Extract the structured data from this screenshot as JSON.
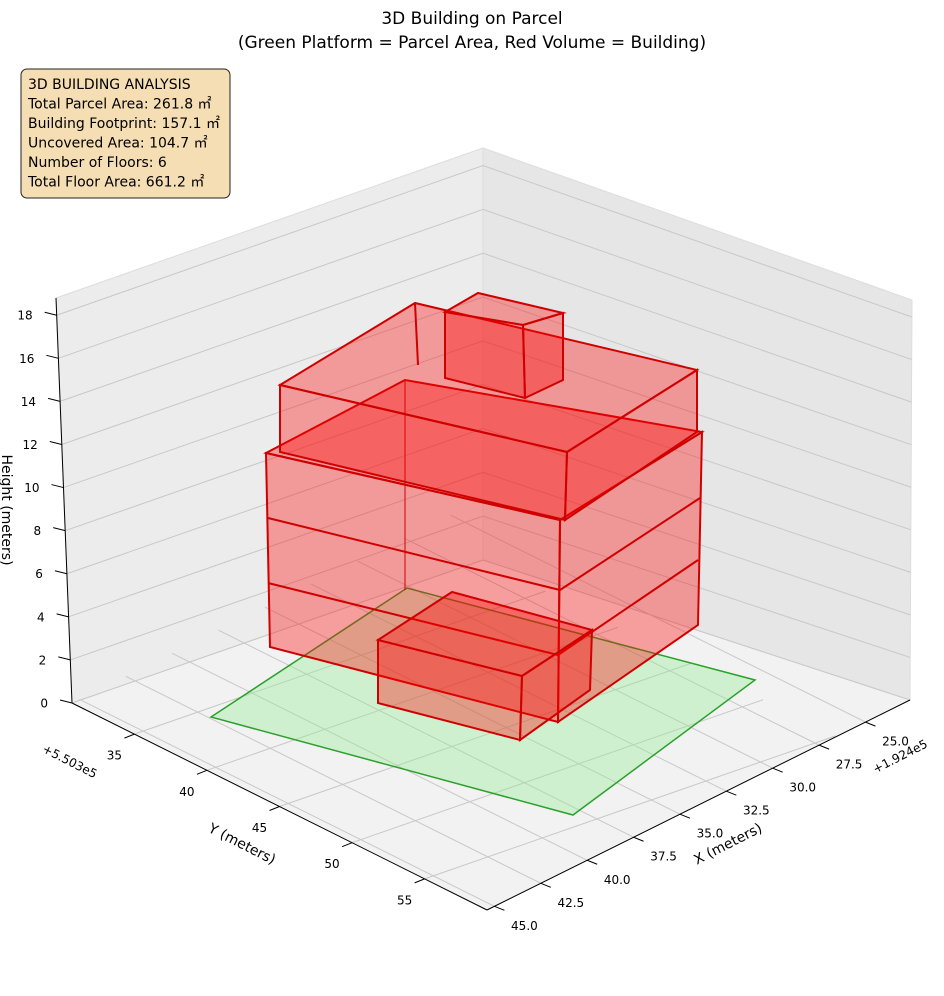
{
  "chart_data": {
    "type": "building3d",
    "title": "3D Building on Parcel",
    "subtitle": "(Green Platform = Parcel Area, Red Volume = Building)",
    "xlabel": "X (meters)",
    "ylabel": "Y (meters)",
    "zlabel": "Height (meters)",
    "x_offset": "+1.924e5",
    "y_offset": "+5.503e5",
    "xlim": [
      22.6,
      45.4
    ],
    "xticks": [
      {
        "value": 25,
        "label": "25.0"
      },
      {
        "value": 27.5,
        "label": "27.5"
      },
      {
        "value": 30,
        "label": "30.0"
      },
      {
        "value": 32.5,
        "label": "32.5"
      },
      {
        "value": 35,
        "label": "35.0"
      },
      {
        "value": 37.5,
        "label": "37.5"
      },
      {
        "value": 40,
        "label": "40.0"
      },
      {
        "value": 42.5,
        "label": "42.5"
      },
      {
        "value": 45,
        "label": "45.0"
      }
    ],
    "ylim": [
      30.7,
      59.3
    ],
    "yticks": [
      35,
      40,
      45,
      50,
      55
    ],
    "zlim": [
      0,
      18.8
    ],
    "zticks": [
      0,
      2,
      4,
      6,
      8,
      10,
      12,
      14,
      16,
      18
    ],
    "grid": true,
    "annotation": [
      "3D BUILDING ANALYSIS",
      "Total Parcel Area: 261.8 ㎡",
      "Building Footprint: 157.1 ㎡",
      "Uncovered Area: 104.7 ㎡",
      "Number of Floors: 6",
      "Total Floor Area: 661.2 ㎡"
    ]
  }
}
